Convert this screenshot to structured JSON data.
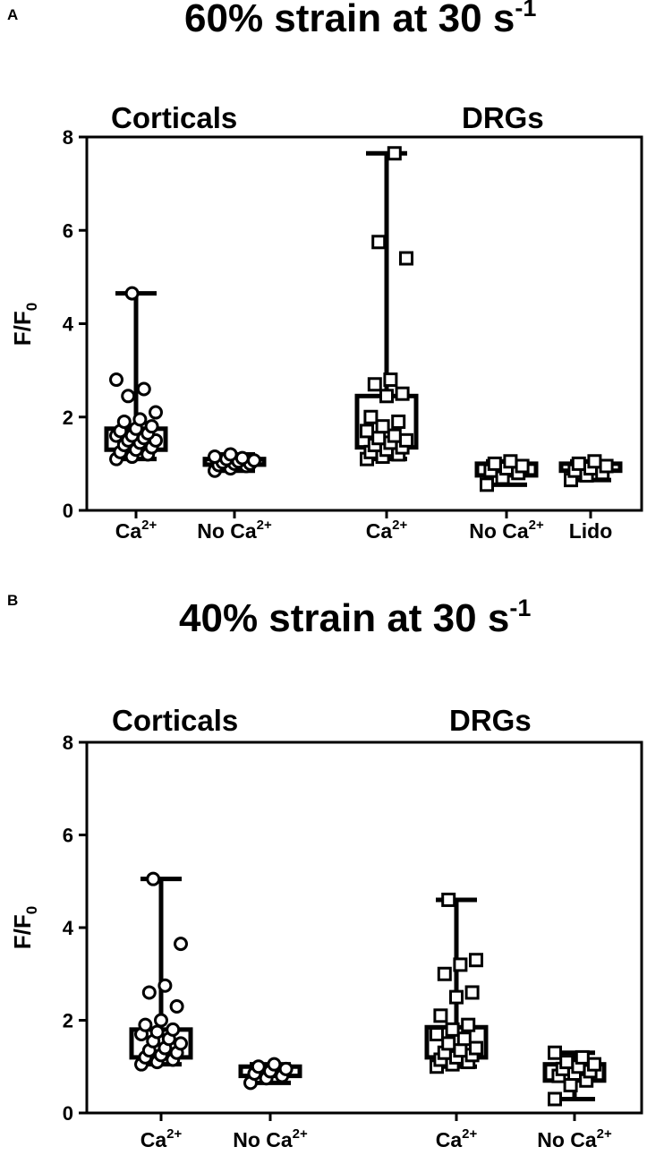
{
  "chart_data": [
    {
      "panel": "A",
      "type": "box",
      "title": "60% strain at 30 s",
      "title_superscript": "-1",
      "groups": [
        "Corticals",
        "DRGs"
      ],
      "ylabel": "F/F",
      "ylabel_subscript": "0",
      "ylim": [
        0,
        8
      ],
      "yticks": [
        "0",
        "2",
        "4",
        "6",
        "8"
      ],
      "categories": [
        {
          "label": "Ca",
          "sup": "2+",
          "group": "Corticals",
          "marker": "circle",
          "whisker": [
            1.1,
            4.65
          ],
          "box": [
            1.3,
            1.75
          ],
          "points": [
            1.1,
            1.15,
            1.2,
            1.25,
            1.3,
            1.35,
            1.4,
            1.45,
            1.5,
            1.5,
            1.55,
            1.6,
            1.6,
            1.65,
            1.7,
            1.75,
            1.8,
            1.9,
            1.95,
            2.1,
            2.45,
            2.6,
            2.8,
            4.65
          ]
        },
        {
          "label": "No Ca",
          "sup": "2+",
          "group": "Corticals",
          "marker": "circle",
          "whisker": [
            0.85,
            1.2
          ],
          "box": [
            0.98,
            1.1
          ],
          "points": [
            0.85,
            0.9,
            0.95,
            0.97,
            1.0,
            1.0,
            1.03,
            1.05,
            1.07,
            1.1,
            1.12,
            1.15,
            1.2
          ]
        },
        {
          "label": "Ca",
          "sup": "2+",
          "group": "DRGs",
          "marker": "square",
          "whisker": [
            1.1,
            7.65
          ],
          "box": [
            1.35,
            2.45
          ],
          "points": [
            1.1,
            1.15,
            1.2,
            1.25,
            1.3,
            1.35,
            1.4,
            1.45,
            1.5,
            1.55,
            1.6,
            1.7,
            1.8,
            1.9,
            2.0,
            2.45,
            2.5,
            2.7,
            2.8,
            5.4,
            5.75,
            7.65
          ]
        },
        {
          "label": "No Ca",
          "sup": "2+",
          "group": "DRGs",
          "marker": "square",
          "whisker": [
            0.55,
            1.05
          ],
          "box": [
            0.75,
            1.0
          ],
          "points": [
            0.55,
            0.7,
            0.8,
            0.85,
            0.9,
            0.95,
            1.0,
            1.05
          ]
        },
        {
          "label": "Lido",
          "sup": "",
          "group": "DRGs",
          "marker": "square",
          "whisker": [
            0.65,
            1.05
          ],
          "box": [
            0.85,
            1.0
          ],
          "points": [
            0.65,
            0.75,
            0.8,
            0.85,
            0.9,
            0.95,
            1.0,
            1.05
          ]
        }
      ]
    },
    {
      "panel": "B",
      "type": "box",
      "title": "40% strain at 30 s",
      "title_superscript": "-1",
      "groups": [
        "Corticals",
        "DRGs"
      ],
      "ylabel": "F/F",
      "ylabel_subscript": "0",
      "ylim": [
        0,
        8
      ],
      "yticks": [
        "0",
        "2",
        "4",
        "6",
        "8"
      ],
      "categories": [
        {
          "label": "Ca",
          "sup": "2+",
          "group": "Corticals",
          "marker": "circle",
          "whisker": [
            1.05,
            5.05
          ],
          "box": [
            1.2,
            1.8
          ],
          "points": [
            1.05,
            1.1,
            1.15,
            1.2,
            1.25,
            1.3,
            1.35,
            1.4,
            1.5,
            1.55,
            1.6,
            1.7,
            1.75,
            1.8,
            1.9,
            2.0,
            2.3,
            2.6,
            2.75,
            3.65,
            5.05
          ]
        },
        {
          "label": "No Ca",
          "sup": "2+",
          "group": "Corticals",
          "marker": "circle",
          "whisker": [
            0.65,
            1.05
          ],
          "box": [
            0.8,
            1.0
          ],
          "points": [
            0.65,
            0.75,
            0.8,
            0.85,
            0.9,
            0.95,
            1.0,
            1.05
          ]
        },
        {
          "label": "Ca",
          "sup": "2+",
          "group": "DRGs",
          "marker": "square",
          "whisker": [
            1.0,
            4.6
          ],
          "box": [
            1.2,
            1.85
          ],
          "points": [
            1.0,
            1.05,
            1.1,
            1.15,
            1.2,
            1.25,
            1.3,
            1.35,
            1.4,
            1.5,
            1.6,
            1.7,
            1.8,
            1.9,
            2.1,
            2.5,
            2.6,
            3.0,
            3.2,
            3.3,
            4.6
          ]
        },
        {
          "label": "No Ca",
          "sup": "2+",
          "group": "DRGs",
          "marker": "square",
          "whisker": [
            0.3,
            1.3
          ],
          "box": [
            0.7,
            1.05
          ],
          "points": [
            0.3,
            0.6,
            0.7,
            0.8,
            0.85,
            0.9,
            0.95,
            1.0,
            1.05,
            1.1,
            1.2,
            1.3
          ]
        }
      ]
    }
  ]
}
